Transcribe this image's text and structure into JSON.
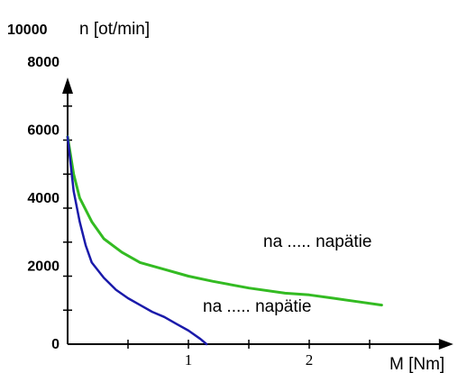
{
  "chart_data": {
    "type": "line",
    "title": "",
    "xlabel": "M [Nm]",
    "ylabel": "n [ot/min]",
    "y_top_label": "10000",
    "xlim": [
      0,
      2.7
    ],
    "ylim": [
      0,
      8000
    ],
    "x_ticks": [
      1,
      2
    ],
    "y_ticks": [
      {
        "value": 0,
        "label": "0"
      },
      {
        "value": 2000,
        "label": "2000"
      },
      {
        "value": 4000,
        "label": "4000"
      },
      {
        "value": 6000,
        "label": "6000"
      },
      {
        "value": 8000,
        "label": "8000"
      }
    ],
    "grid": false,
    "series": [
      {
        "color": "#33bb22",
        "annotation": "na ..... napätie",
        "x": [
          0.0,
          0.05,
          0.1,
          0.2,
          0.3,
          0.45,
          0.6,
          0.8,
          1.0,
          1.2,
          1.5,
          1.8,
          2.0,
          2.2,
          2.4,
          2.6
        ],
        "y": [
          6100,
          5000,
          4300,
          3600,
          3100,
          2700,
          2400,
          2200,
          2000,
          1850,
          1650,
          1500,
          1450,
          1350,
          1250,
          1150
        ]
      },
      {
        "color": "#1a1aaa",
        "annotation": "na ..... napätie",
        "x": [
          0.0,
          0.05,
          0.1,
          0.15,
          0.2,
          0.3,
          0.4,
          0.5,
          0.6,
          0.7,
          0.8,
          0.9,
          1.0,
          1.1,
          1.15
        ],
        "y": [
          6100,
          4500,
          3600,
          2900,
          2400,
          1950,
          1600,
          1350,
          1150,
          950,
          800,
          600,
          400,
          150,
          0
        ]
      }
    ]
  }
}
